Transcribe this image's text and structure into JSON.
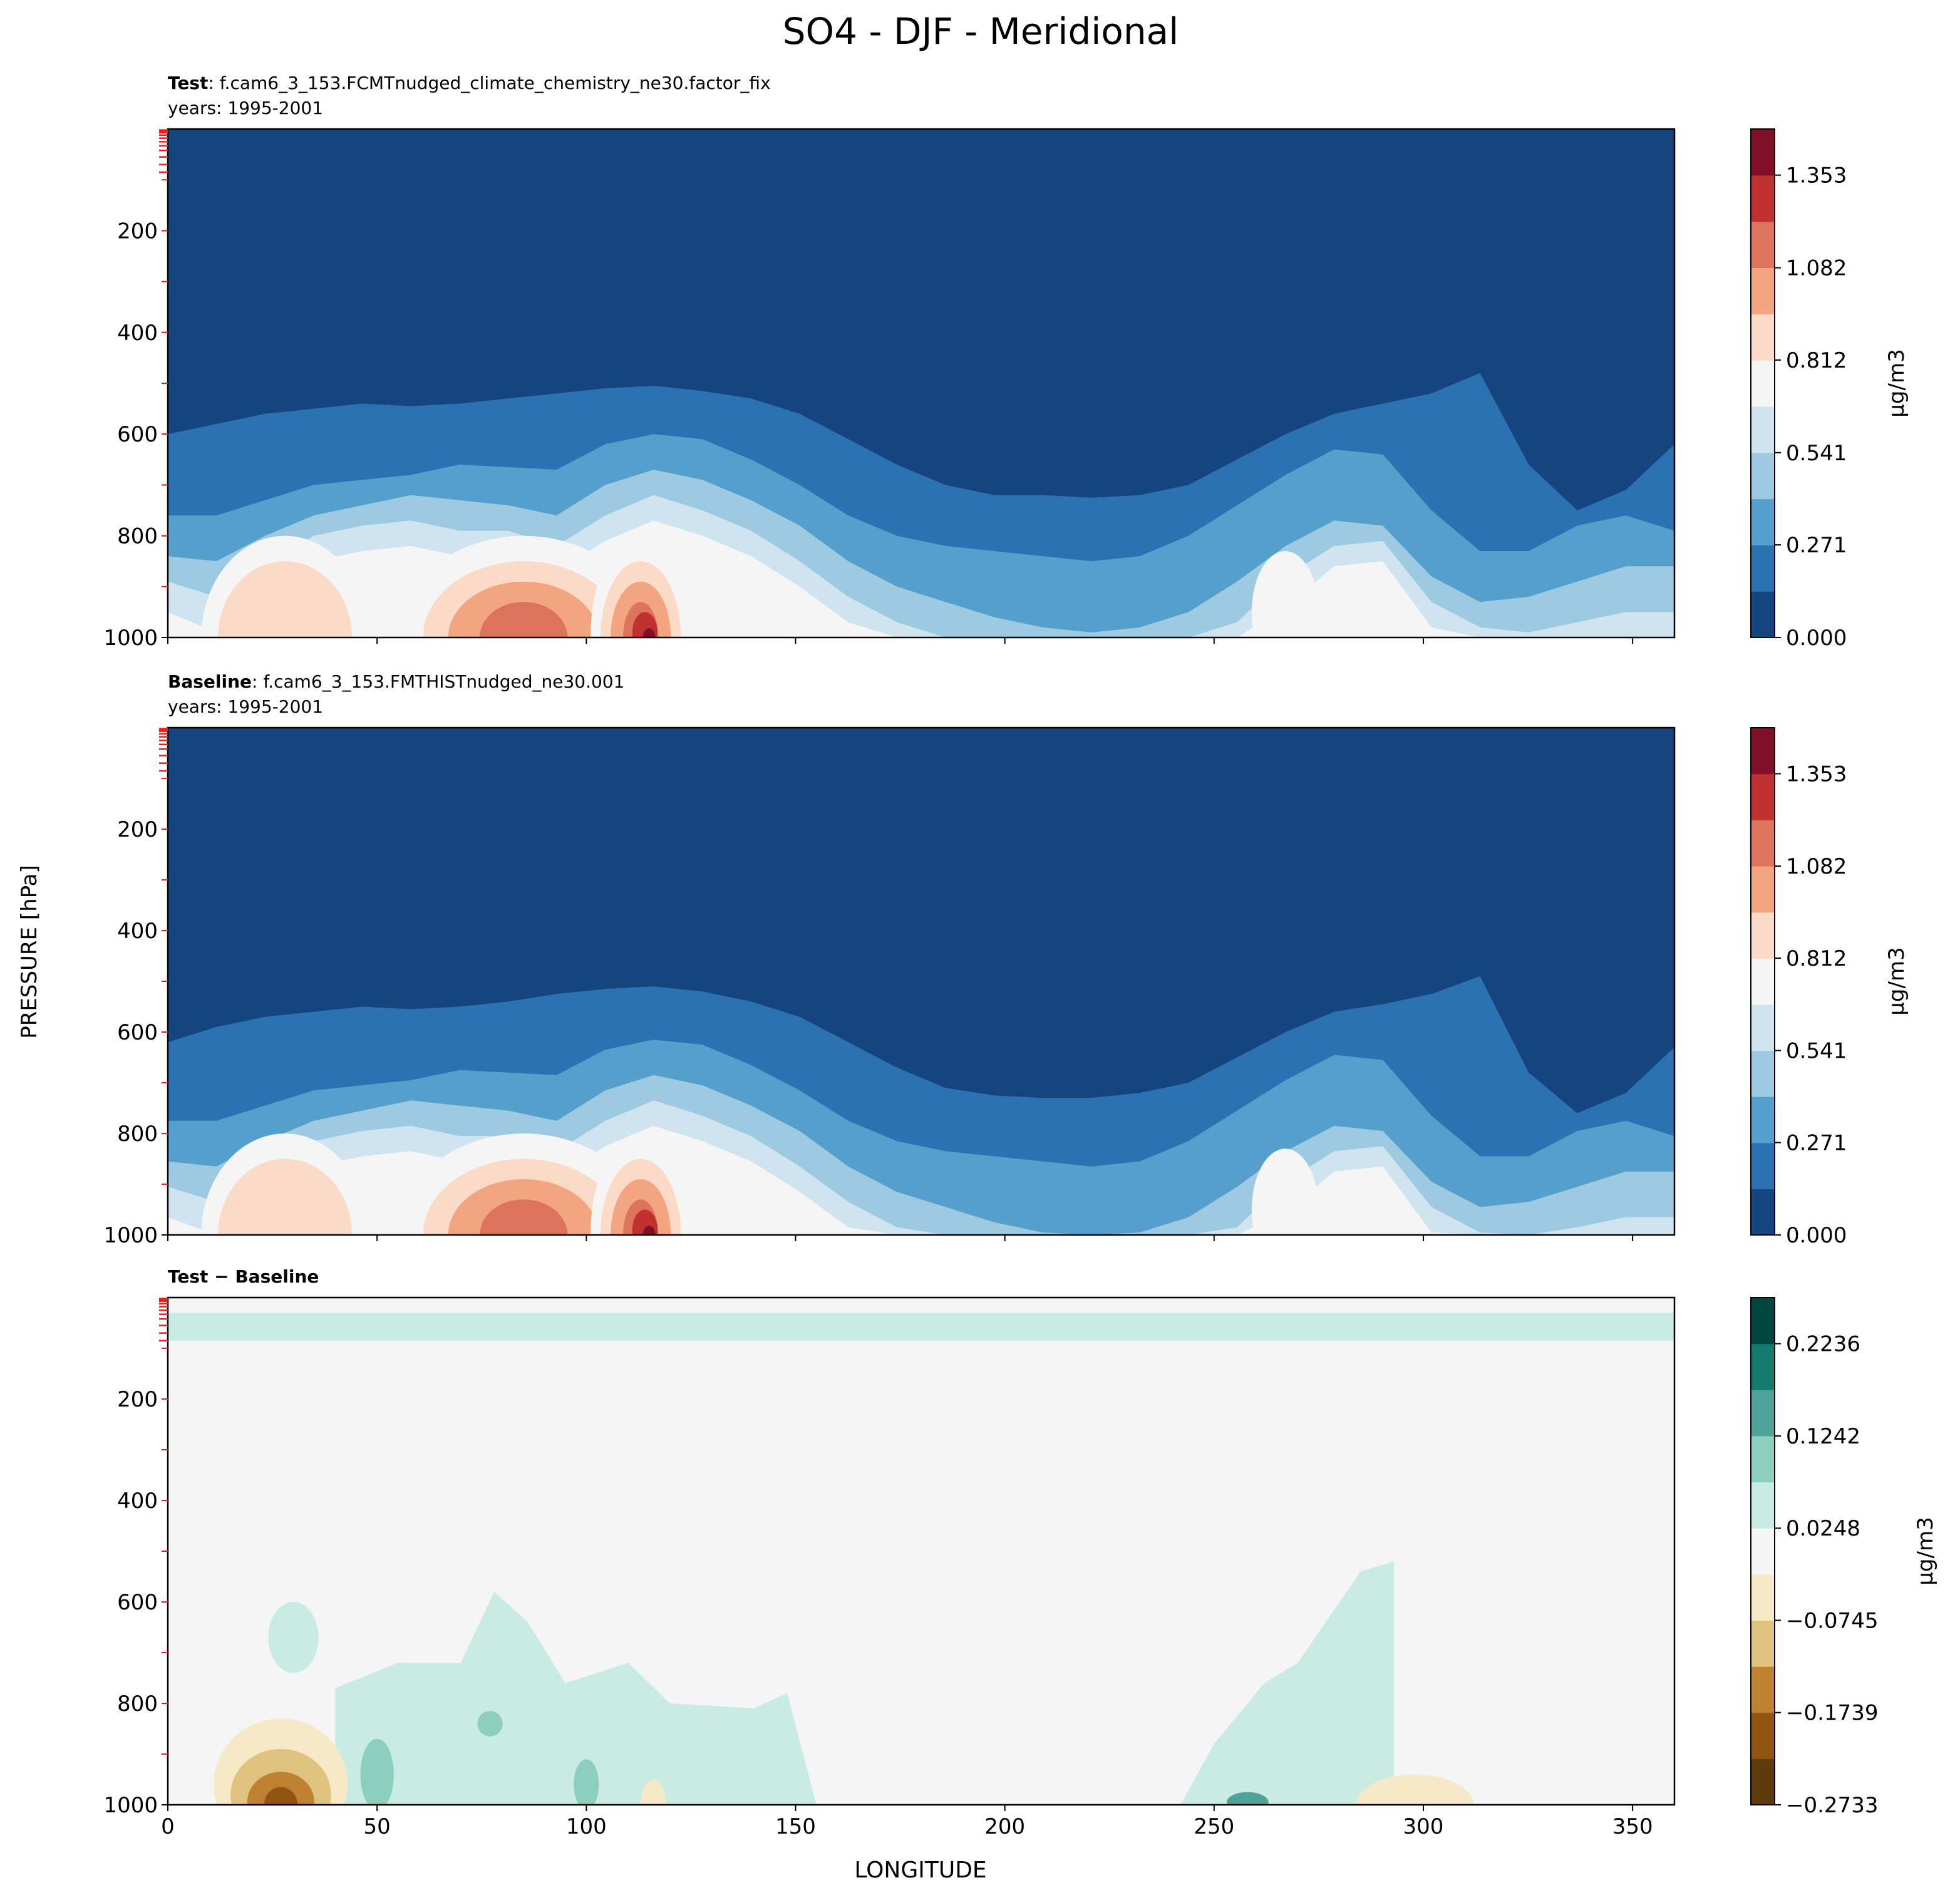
{
  "figure": {
    "title": "SO4 - DJF - Meridional",
    "ylabel": "PRESSURE [hPa]",
    "xlabel": "LONGITUDE"
  },
  "colors": {
    "blues": [
      "#14457e",
      "#2c72b3",
      "#559fcc",
      "#9dc9e1",
      "#d0e4f0",
      "#f5f5f5",
      "#fbdbc8",
      "#f3a581",
      "#de735d",
      "#c03230",
      "#810f27"
    ],
    "diff": [
      "#5e3b0b",
      "#8f5511",
      "#bf802f",
      "#dfc27d",
      "#f5e9c8",
      "#f4f5f4",
      "#c8ebe3",
      "#8ccfc1",
      "#4ea399",
      "#137a70",
      "#01463c"
    ],
    "tick_red": "#ee1c1c"
  },
  "chart_data": [
    {
      "type": "contour",
      "panel": "test",
      "label_bold": "Test",
      "label_rest": ": f.cam6_3_153.FCMTnudged_climate_chemistry_ne30.factor_fix",
      "years": "years: 1995-2001",
      "xlim": [
        0,
        360
      ],
      "ylim": [
        1000,
        0
      ],
      "xticks": [
        0,
        50,
        100,
        150,
        200,
        250,
        300,
        350
      ],
      "yticks": [
        "200",
        "400",
        "600",
        "800",
        "1000"
      ],
      "colorbar": {
        "ticks": [
          "0.000",
          "0.271",
          "0.541",
          "0.812",
          "1.082",
          "1.353"
        ],
        "tick_values": [
          0,
          0.271,
          0.541,
          0.812,
          1.082,
          1.353
        ],
        "range": [
          0,
          1.488
        ],
        "label": "μg/m3"
      },
      "contour_levels_base_p": [
        [
          760,
          760,
          730,
          700,
          690,
          680,
          660,
          665,
          670,
          620,
          600,
          610,
          650,
          700,
          760,
          800,
          820,
          830,
          840,
          850,
          840,
          800,
          740,
          680,
          630,
          640,
          750,
          830,
          830,
          780,
          760,
          790
        ],
        [
          840,
          850,
          800,
          760,
          740,
          720,
          730,
          740,
          760,
          700,
          670,
          690,
          730,
          780,
          850,
          900,
          930,
          960,
          980,
          990,
          980,
          950,
          890,
          820,
          770,
          780,
          880,
          930,
          920,
          890,
          860,
          860
        ],
        [
          890,
          920,
          860,
          800,
          780,
          770,
          790,
          790,
          820,
          760,
          720,
          750,
          790,
          850,
          920,
          970,
          1000,
          1000,
          1000,
          1000,
          1000,
          1000,
          970,
          880,
          820,
          810,
          930,
          980,
          990,
          970,
          950,
          950
        ],
        [
          950,
          990,
          920,
          850,
          830,
          820,
          840,
          840,
          870,
          810,
          770,
          800,
          840,
          900,
          970,
          1000,
          1000,
          1000,
          1000,
          1000,
          1000,
          1000,
          1000,
          940,
          860,
          850,
          980,
          1000,
          1000,
          1000,
          1000,
          1000
        ]
      ],
      "top_boundary_p": [
        600,
        580,
        560,
        550,
        540,
        545,
        540,
        530,
        520,
        510,
        505,
        515,
        530,
        560,
        610,
        660,
        700,
        720,
        720,
        725,
        720,
        700,
        650,
        600,
        560,
        540,
        520,
        480,
        660,
        750,
        710,
        620
      ]
    },
    {
      "type": "contour",
      "panel": "baseline",
      "label_bold": "Baseline",
      "label_rest": ": f.cam6_3_153.FMTHISTnudged_ne30.001",
      "years": "years: 1995-2001",
      "xlim": [
        0,
        360
      ],
      "ylim": [
        1000,
        0
      ],
      "xticks": [
        0,
        50,
        100,
        150,
        200,
        250,
        300,
        350
      ],
      "yticks": [
        "200",
        "400",
        "600",
        "800",
        "1000"
      ],
      "colorbar": {
        "ticks": [
          "0.000",
          "0.271",
          "0.541",
          "0.812",
          "1.082",
          "1.353"
        ],
        "tick_values": [
          0,
          0.271,
          0.541,
          0.812,
          1.082,
          1.353
        ],
        "range": [
          0,
          1.488
        ],
        "label": "μg/m3"
      },
      "top_boundary_p": [
        620,
        590,
        570,
        560,
        550,
        555,
        550,
        540,
        525,
        515,
        510,
        520,
        540,
        570,
        620,
        670,
        710,
        725,
        730,
        730,
        720,
        700,
        650,
        600,
        560,
        545,
        525,
        490,
        680,
        760,
        720,
        630
      ]
    },
    {
      "type": "contour",
      "panel": "difference",
      "label_bold_a": "Test",
      "label_minus": " − ",
      "label_bold_b": "Baseline",
      "xlim": [
        0,
        360
      ],
      "ylim": [
        1000,
        0
      ],
      "xticks": [
        0,
        50,
        100,
        150,
        200,
        250,
        300,
        350
      ],
      "yticks": [
        "200",
        "400",
        "600",
        "800",
        "1000"
      ],
      "colorbar": {
        "ticks": [
          "0.2236",
          "0.1242",
          "0.0248",
          "−0.0745",
          "−0.1739",
          "−0.2733"
        ],
        "tick_values": [
          0.2236,
          0.1242,
          0.0248,
          -0.0745,
          -0.1739,
          -0.2733
        ],
        "range": [
          -0.2733,
          0.2733
        ],
        "label": "μg/m3"
      },
      "stratosphere_band_p": [
        30,
        85
      ]
    }
  ]
}
